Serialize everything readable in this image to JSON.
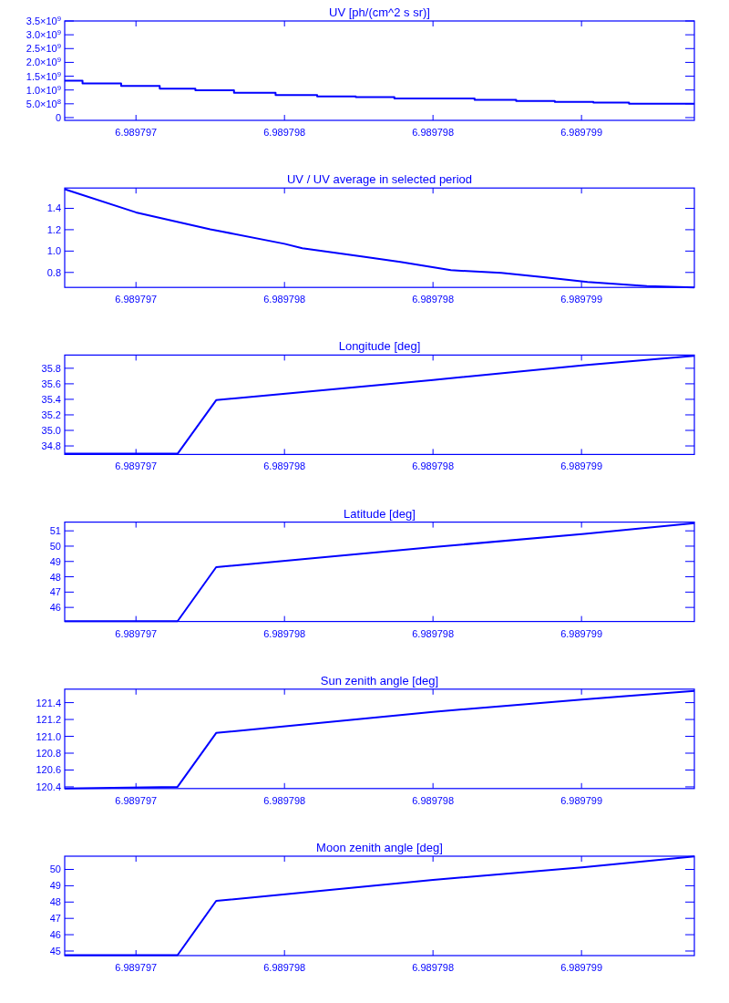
{
  "chart_data": [
    {
      "type": "step",
      "title": "UV [ph/(cm^2 s sr)]",
      "color": "#0000ff",
      "x": [
        6.98979676,
        6.98979682,
        6.98979695,
        6.98979708,
        6.9897972,
        6.98979733,
        6.98979747,
        6.98979761,
        6.98979774,
        6.98979787,
        6.98979814,
        6.98979828,
        6.98979841,
        6.98979854,
        6.98979866,
        6.98979888
      ],
      "values": [
        1340000000.0,
        1240000000.0,
        1150000000.0,
        1050000000.0,
        990000000.0,
        900000000.0,
        820000000.0,
        770000000.0,
        740000000.0,
        690000000.0,
        640000000.0,
        600000000.0,
        570000000.0,
        540000000.0,
        500000000.0,
        500000000.0
      ],
      "xlim": [
        6.98979676,
        6.98979888
      ],
      "xticks": [
        {
          "value": 6.989797,
          "label": "6.989797"
        },
        {
          "value": 6.9897975,
          "label": "6.989798"
        },
        {
          "value": 6.989798,
          "label": "6.989798"
        },
        {
          "value": 6.9897985,
          "label": "6.989799"
        }
      ],
      "ylim": [
        -100000000.0,
        3500000000.0
      ],
      "yticks": [
        0,
        {
          "value": 500000000.0,
          "label": "5.0×10$^{8}$"
        },
        {
          "value": 1000000000.0,
          "label": "1.0×10$^{9}$"
        },
        {
          "value": 1500000000.0,
          "label": "1.5×10$^{9}$"
        },
        {
          "value": 2000000000.0,
          "label": "2.0×10$^{9}$"
        },
        {
          "value": 2500000000.0,
          "label": "2.5×10$^{9}$"
        },
        {
          "value": 3000000000.0,
          "label": "3.0×10$^{9}$"
        },
        {
          "value": 3500000000.0,
          "label": "3.5×10$^{9}$"
        }
      ]
    },
    {
      "type": "line",
      "title": "UV / UV average in selected period",
      "color": "#0000ff",
      "x": [
        6.98979676,
        6.989797,
        6.98979725,
        6.9897975,
        6.98979756,
        6.98979776,
        6.98979789,
        6.98979806,
        6.98979823,
        6.98979838,
        6.98979852,
        6.98979872,
        6.98979888
      ],
      "values": [
        1.579,
        1.362,
        1.204,
        1.068,
        1.026,
        0.949,
        0.898,
        0.821,
        0.796,
        0.753,
        0.711,
        0.672,
        0.66
      ],
      "xlim": [
        6.98979676,
        6.98979888
      ],
      "xticks": [
        {
          "value": 6.989797,
          "label": "6.989797"
        },
        {
          "value": 6.9897975,
          "label": "6.989798"
        },
        {
          "value": 6.989798,
          "label": "6.989798"
        },
        {
          "value": 6.9897985,
          "label": "6.989799"
        }
      ],
      "ylim": [
        0.66,
        1.59
      ],
      "yticks": [
        {
          "value": 0.8,
          "label": "0.8"
        },
        {
          "value": 1.0,
          "label": "1.0"
        },
        {
          "value": 1.2,
          "label": "1.2"
        },
        {
          "value": 1.4,
          "label": "1.4"
        }
      ]
    },
    {
      "type": "line",
      "title": "Longitude [deg]",
      "color": "#0000ff",
      "x": [
        6.98979676,
        6.98979714,
        6.98979727,
        6.989798,
        6.98979851,
        6.98979888
      ],
      "values": [
        34.7,
        34.7,
        35.39,
        35.65,
        35.84,
        35.96
      ],
      "xlim": [
        6.98979676,
        6.98979888
      ],
      "xticks": [
        {
          "value": 6.989797,
          "label": "6.989797"
        },
        {
          "value": 6.9897975,
          "label": "6.989798"
        },
        {
          "value": 6.989798,
          "label": "6.989798"
        },
        {
          "value": 6.9897985,
          "label": "6.989799"
        }
      ],
      "ylim": [
        34.69,
        35.97
      ],
      "yticks": [
        {
          "value": 34.8,
          "label": "34.8"
        },
        {
          "value": 35.0,
          "label": "35.0"
        },
        {
          "value": 35.2,
          "label": "35.2"
        },
        {
          "value": 35.4,
          "label": "35.4"
        },
        {
          "value": 35.6,
          "label": "35.6"
        },
        {
          "value": 35.8,
          "label": "35.8"
        }
      ]
    },
    {
      "type": "line",
      "title": "Latitude [deg]",
      "color": "#0000ff",
      "x": [
        6.98979676,
        6.98979714,
        6.98979727,
        6.989798,
        6.98979851,
        6.98979888
      ],
      "values": [
        45.1,
        45.1,
        48.63,
        49.94,
        50.8,
        51.5
      ],
      "xlim": [
        6.98979676,
        6.98979888
      ],
      "xticks": [
        {
          "value": 6.989797,
          "label": "6.989797"
        },
        {
          "value": 6.9897975,
          "label": "6.989798"
        },
        {
          "value": 6.989798,
          "label": "6.989798"
        },
        {
          "value": 6.9897985,
          "label": "6.989799"
        }
      ],
      "ylim": [
        45.08,
        51.57
      ],
      "yticks": [
        46,
        47,
        48,
        49,
        50,
        51
      ]
    },
    {
      "type": "line",
      "title": "Sun zenith angle [deg]",
      "color": "#0000ff",
      "x": [
        6.98979676,
        6.98979714,
        6.98979727,
        6.989798,
        6.98979851,
        6.98979888
      ],
      "values": [
        120.38,
        120.4,
        121.04,
        121.29,
        121.44,
        121.54
      ],
      "xlim": [
        6.98979676,
        6.98979888
      ],
      "xticks": [
        {
          "value": 6.989797,
          "label": "6.989797"
        },
        {
          "value": 6.9897975,
          "label": "6.989798"
        },
        {
          "value": 6.989798,
          "label": "6.989798"
        },
        {
          "value": 6.9897985,
          "label": "6.989799"
        }
      ],
      "ylim": [
        120.38,
        121.56
      ],
      "yticks": [
        120.4,
        120.6,
        120.8,
        {
          "value": 121.0,
          "label": "121.0"
        },
        121.2,
        121.4
      ]
    },
    {
      "type": "line",
      "title": "Moon zenith angle [deg]",
      "color": "#0000ff",
      "x": [
        6.98979676,
        6.98979714,
        6.98979727,
        6.989798,
        6.98979851,
        6.98979888
      ],
      "values": [
        44.75,
        44.75,
        48.07,
        49.36,
        50.14,
        50.8
      ],
      "xlim": [
        6.98979676,
        6.98979888
      ],
      "xticks": [
        {
          "value": 6.989797,
          "label": "6.989797"
        },
        {
          "value": 6.9897975,
          "label": "6.989798"
        },
        {
          "value": 6.989798,
          "label": "6.989798"
        },
        {
          "value": 6.9897985,
          "label": "6.989799"
        }
      ],
      "ylim": [
        44.72,
        50.81
      ],
      "yticks": [
        45,
        46,
        47,
        48,
        49,
        50
      ]
    }
  ]
}
